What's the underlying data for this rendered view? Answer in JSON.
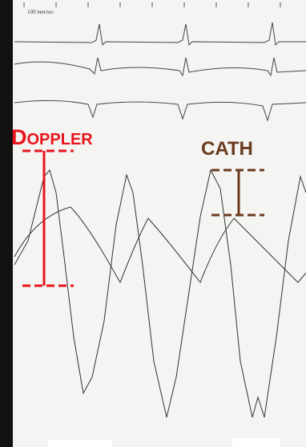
{
  "paper_speed": "100 mm/sec",
  "labels": {
    "doppler": "DOPPLER",
    "cath": "CATH"
  }
}
